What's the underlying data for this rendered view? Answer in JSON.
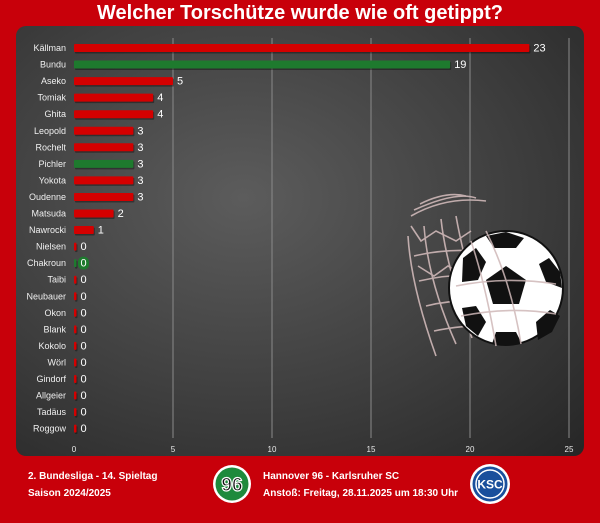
{
  "header": {
    "title": "Welcher Torschütze wurde wie oft getippt?"
  },
  "footer": {
    "league": "2. Bundesliga - 14. Spieltag",
    "season": "Saison 2024/2025",
    "match": "Hannover 96 - Karlsruher SC",
    "kickoff": "Anstoß: Freitag, 28.11.2025 um 18:30 Uhr",
    "home_logo_text": "96",
    "away_logo_text": "KSC"
  },
  "colors": {
    "red": "#d40000",
    "green": "#1e7a2e",
    "background": "#c8000a",
    "away_blue": "#1a4f9c"
  },
  "chart_data": {
    "type": "bar",
    "orientation": "horizontal",
    "categories": [
      "Källman",
      "Bundu",
      "Aseko",
      "Tomiak",
      "Ghita",
      "Leopold",
      "Rochelt",
      "Pichler",
      "Yokota",
      "Oudenne",
      "Matsuda",
      "Nawrocki",
      "Nielsen",
      "Chakroun",
      "Taibi",
      "Neubauer",
      "Okon",
      "Blank",
      "Kokolo",
      "Wörl",
      "Gindorf",
      "Allgeier",
      "Tadäus",
      "Roggow"
    ],
    "values": [
      23,
      19,
      5,
      4,
      4,
      3,
      3,
      3,
      3,
      3,
      2,
      1,
      0,
      0,
      0,
      0,
      0,
      0,
      0,
      0,
      0,
      0,
      0,
      0
    ],
    "bar_colors": [
      "red",
      "green",
      "red",
      "red",
      "red",
      "red",
      "red",
      "green",
      "red",
      "red",
      "red",
      "red",
      "red",
      "green",
      "red",
      "red",
      "red",
      "red",
      "red",
      "red",
      "red",
      "red",
      "red",
      "red"
    ],
    "xticks": [
      0,
      5,
      10,
      15,
      20,
      25
    ],
    "xlim": [
      0,
      25
    ],
    "grid": true,
    "title": "Welcher Torschütze wurde wie oft getippt?"
  }
}
